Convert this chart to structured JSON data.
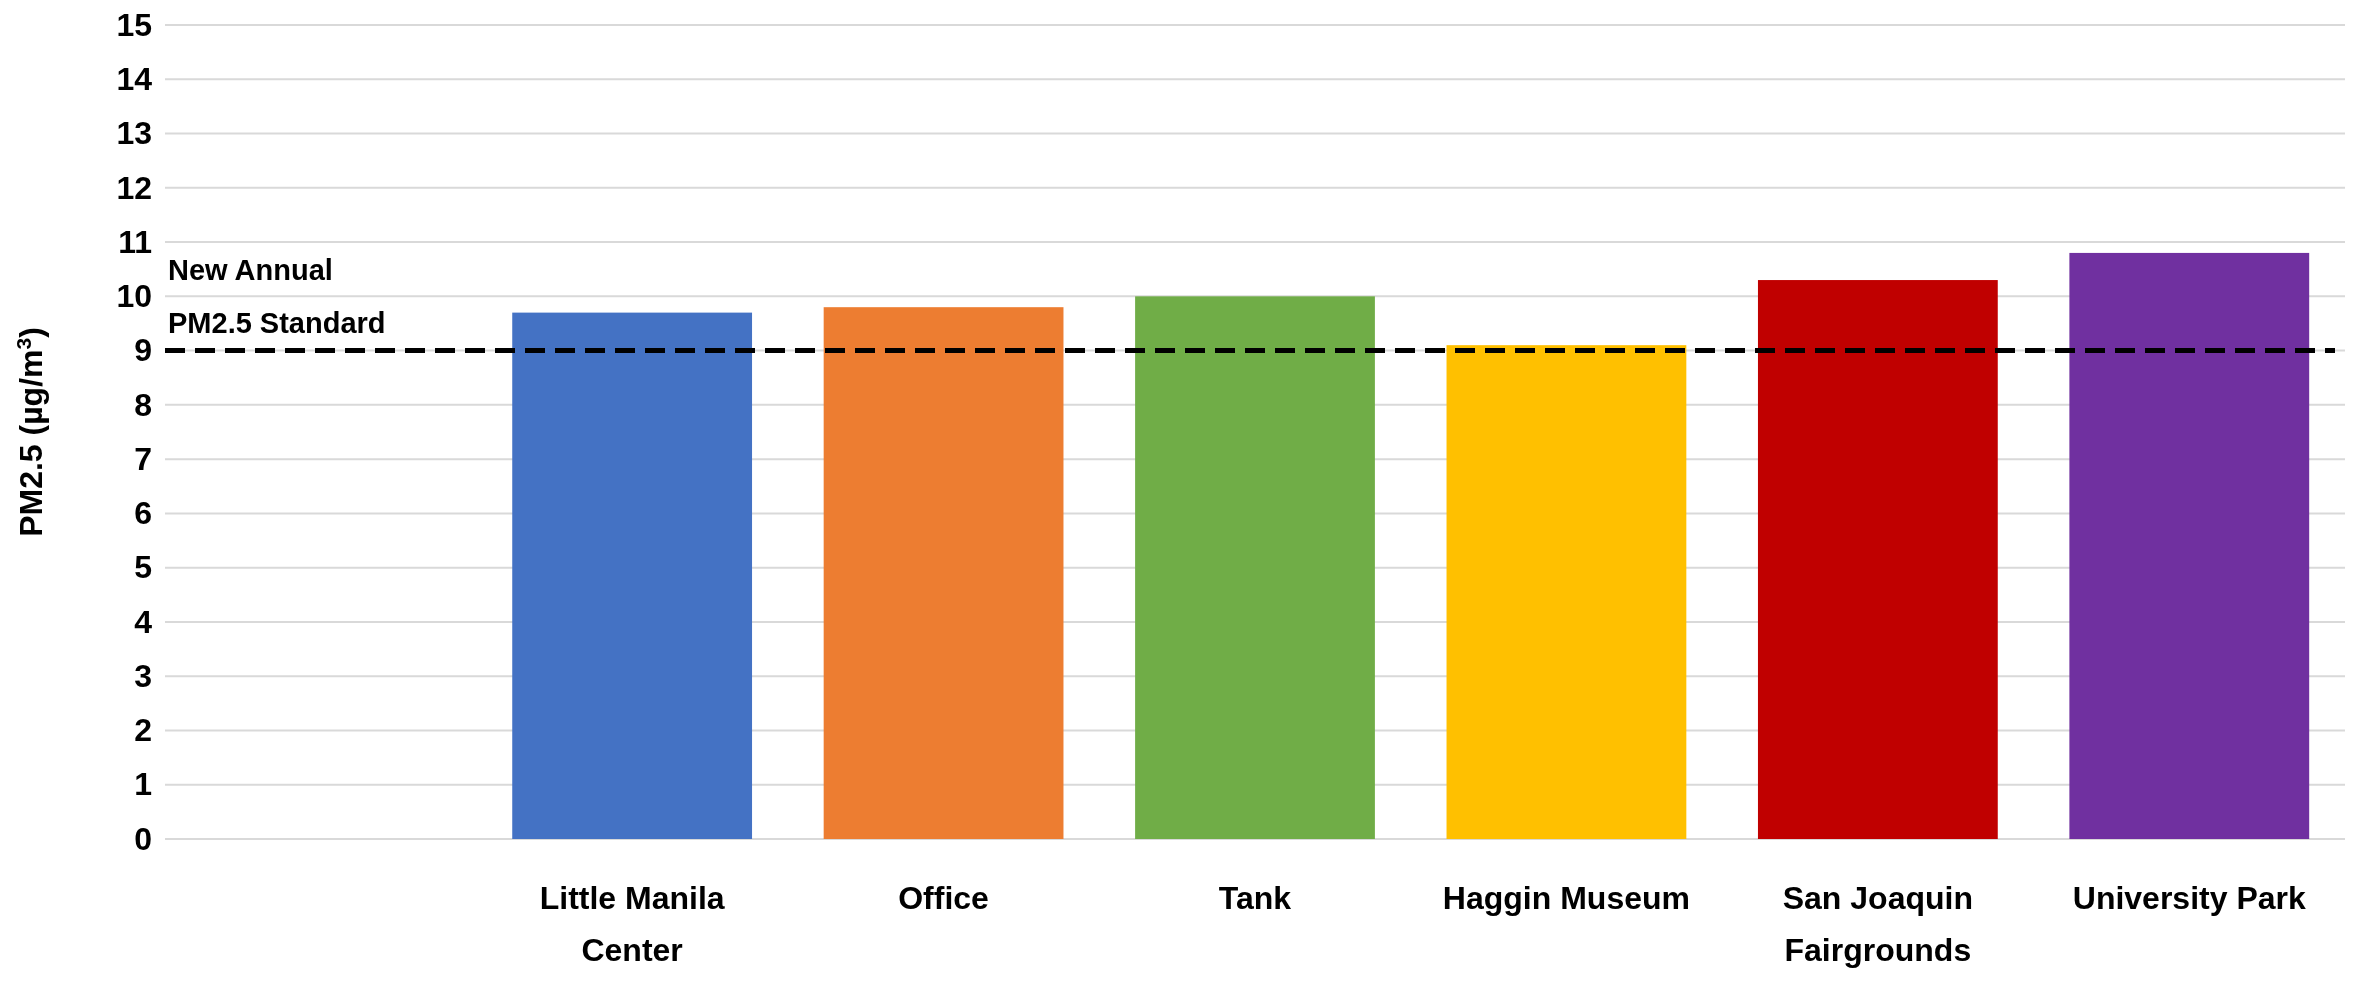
{
  "chart_data": {
    "type": "bar",
    "ylabel": "PM2.5 (µg/m$^{3}$)",
    "categories": [
      null,
      "Little Manila Center",
      "Office",
      "Tank",
      "Haggin Museum",
      "San Joaquin Fairgrounds",
      "University Park"
    ],
    "values": [
      null,
      9.7,
      9.8,
      10.0,
      9.1,
      10.3,
      10.8
    ],
    "colors": [
      null,
      "#4472c4",
      "#ed7d31",
      "#70ad47",
      "#ffc000",
      "#c00000",
      "#7030a0"
    ],
    "ylim": [
      0,
      15
    ],
    "yticks": [
      0,
      1,
      2,
      3,
      4,
      5,
      6,
      7,
      8,
      9,
      10,
      11,
      12,
      13,
      14,
      15
    ],
    "grid": "y",
    "ref_lines": [
      {
        "axis": "y",
        "value": 9,
        "label": "New Annual\nPM2.5 Standard",
        "color": "#000000",
        "line_style": "dashed"
      }
    ]
  }
}
